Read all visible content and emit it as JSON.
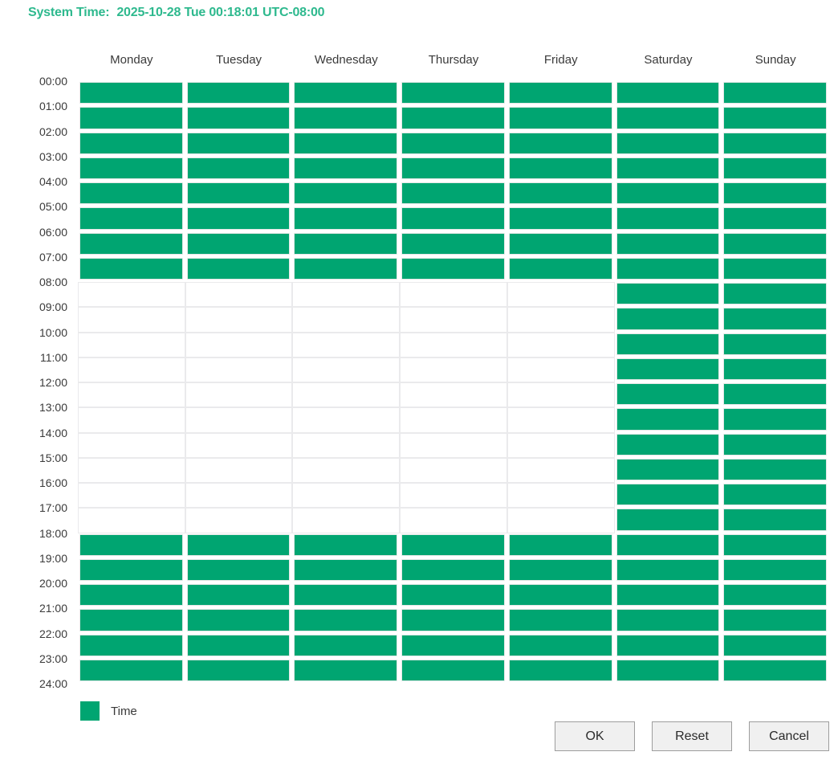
{
  "system_time": {
    "label": "System Time:",
    "value": "2025-10-28 Tue 00:18:01 UTC-08:00"
  },
  "schedule": {
    "days": [
      "Monday",
      "Tuesday",
      "Wednesday",
      "Thursday",
      "Friday",
      "Saturday",
      "Sunday"
    ],
    "hours": [
      "00:00",
      "01:00",
      "02:00",
      "03:00",
      "04:00",
      "05:00",
      "06:00",
      "07:00",
      "08:00",
      "09:00",
      "10:00",
      "11:00",
      "12:00",
      "13:00",
      "14:00",
      "15:00",
      "16:00",
      "17:00",
      "18:00",
      "19:00",
      "20:00",
      "21:00",
      "22:00",
      "23:00",
      "24:00"
    ],
    "selected_intervals": [
      {
        "day": "Monday",
        "intervals": [
          [
            0,
            8
          ],
          [
            18,
            24
          ]
        ]
      },
      {
        "day": "Tuesday",
        "intervals": [
          [
            0,
            8
          ],
          [
            18,
            24
          ]
        ]
      },
      {
        "day": "Wednesday",
        "intervals": [
          [
            0,
            8
          ],
          [
            18,
            24
          ]
        ]
      },
      {
        "day": "Thursday",
        "intervals": [
          [
            0,
            8
          ],
          [
            18,
            24
          ]
        ]
      },
      {
        "day": "Friday",
        "intervals": [
          [
            0,
            8
          ],
          [
            18,
            24
          ]
        ]
      },
      {
        "day": "Saturday",
        "intervals": [
          [
            0,
            24
          ]
        ]
      },
      {
        "day": "Sunday",
        "intervals": [
          [
            0,
            24
          ]
        ]
      }
    ]
  },
  "legend": {
    "label": "Time",
    "color": "#00a571"
  },
  "buttons": [
    {
      "label": "OK"
    },
    {
      "label": "Reset"
    },
    {
      "label": "Cancel"
    }
  ],
  "colors": {
    "selected_cell": "#00a571",
    "system_time_text": "#2eb98e",
    "grid_border": "#eaeaec",
    "label_text": "#3a3a3a",
    "button_background": "#f0f0f0",
    "button_border": "#9d9d9d"
  }
}
